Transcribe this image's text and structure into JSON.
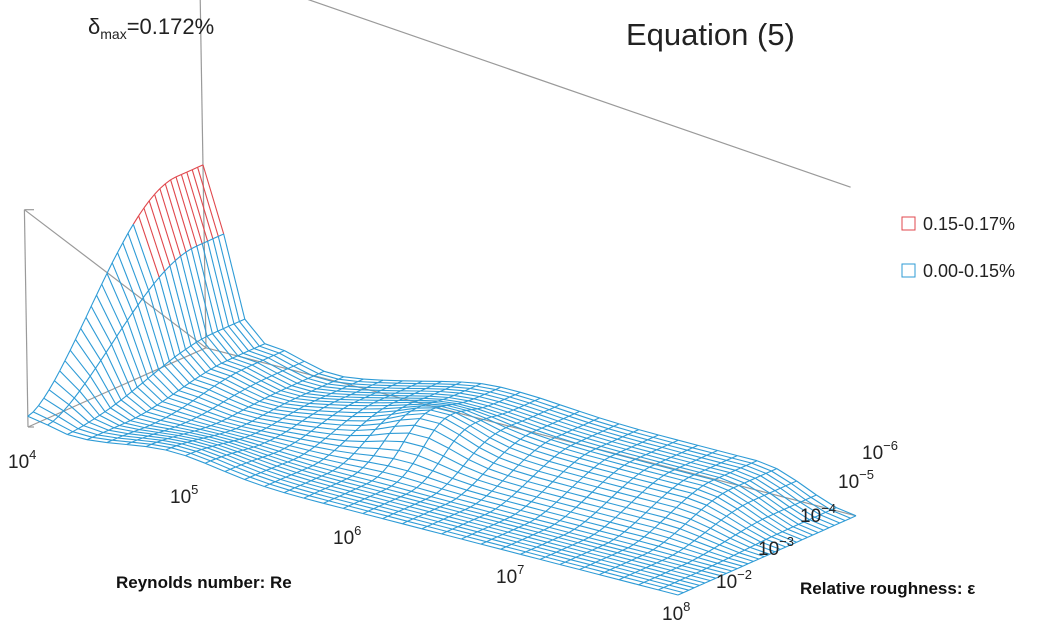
{
  "chart_data": {
    "type": "surface",
    "title": "Equation (5)",
    "annotation": {
      "symbol": "δ",
      "subscript": "max",
      "text": "=0.172%"
    },
    "x_axis": {
      "label": "Reynolds number: Re",
      "scale": "log",
      "range": [
        10000,
        100000000
      ],
      "ticks": [
        {
          "base": "10",
          "exp": "4"
        },
        {
          "base": "10",
          "exp": "5"
        },
        {
          "base": "10",
          "exp": "6"
        },
        {
          "base": "10",
          "exp": "7"
        },
        {
          "base": "10",
          "exp": "8"
        }
      ]
    },
    "y_axis": {
      "label": "Relative roughness: ε",
      "scale": "log",
      "range": [
        1e-06,
        0.01
      ],
      "ticks": [
        {
          "base": "10",
          "exp": "−6"
        },
        {
          "base": "10",
          "exp": "−5"
        },
        {
          "base": "10",
          "exp": "−4"
        },
        {
          "base": "10",
          "exp": "−3"
        },
        {
          "base": "10",
          "exp": "−2"
        }
      ]
    },
    "z_axis": {
      "label": "",
      "unit": "%",
      "range": [
        0,
        0.2
      ]
    },
    "legend": {
      "position": "right",
      "items": [
        {
          "label": "0.15-0.17%",
          "color": "#e0474c",
          "min": 0.15,
          "max": 0.17
        },
        {
          "label": "0.00-0.15%",
          "color": "#2e9bd6",
          "min": 0.0,
          "max": 0.15
        }
      ]
    },
    "max_value": 0.172,
    "grid": true
  }
}
